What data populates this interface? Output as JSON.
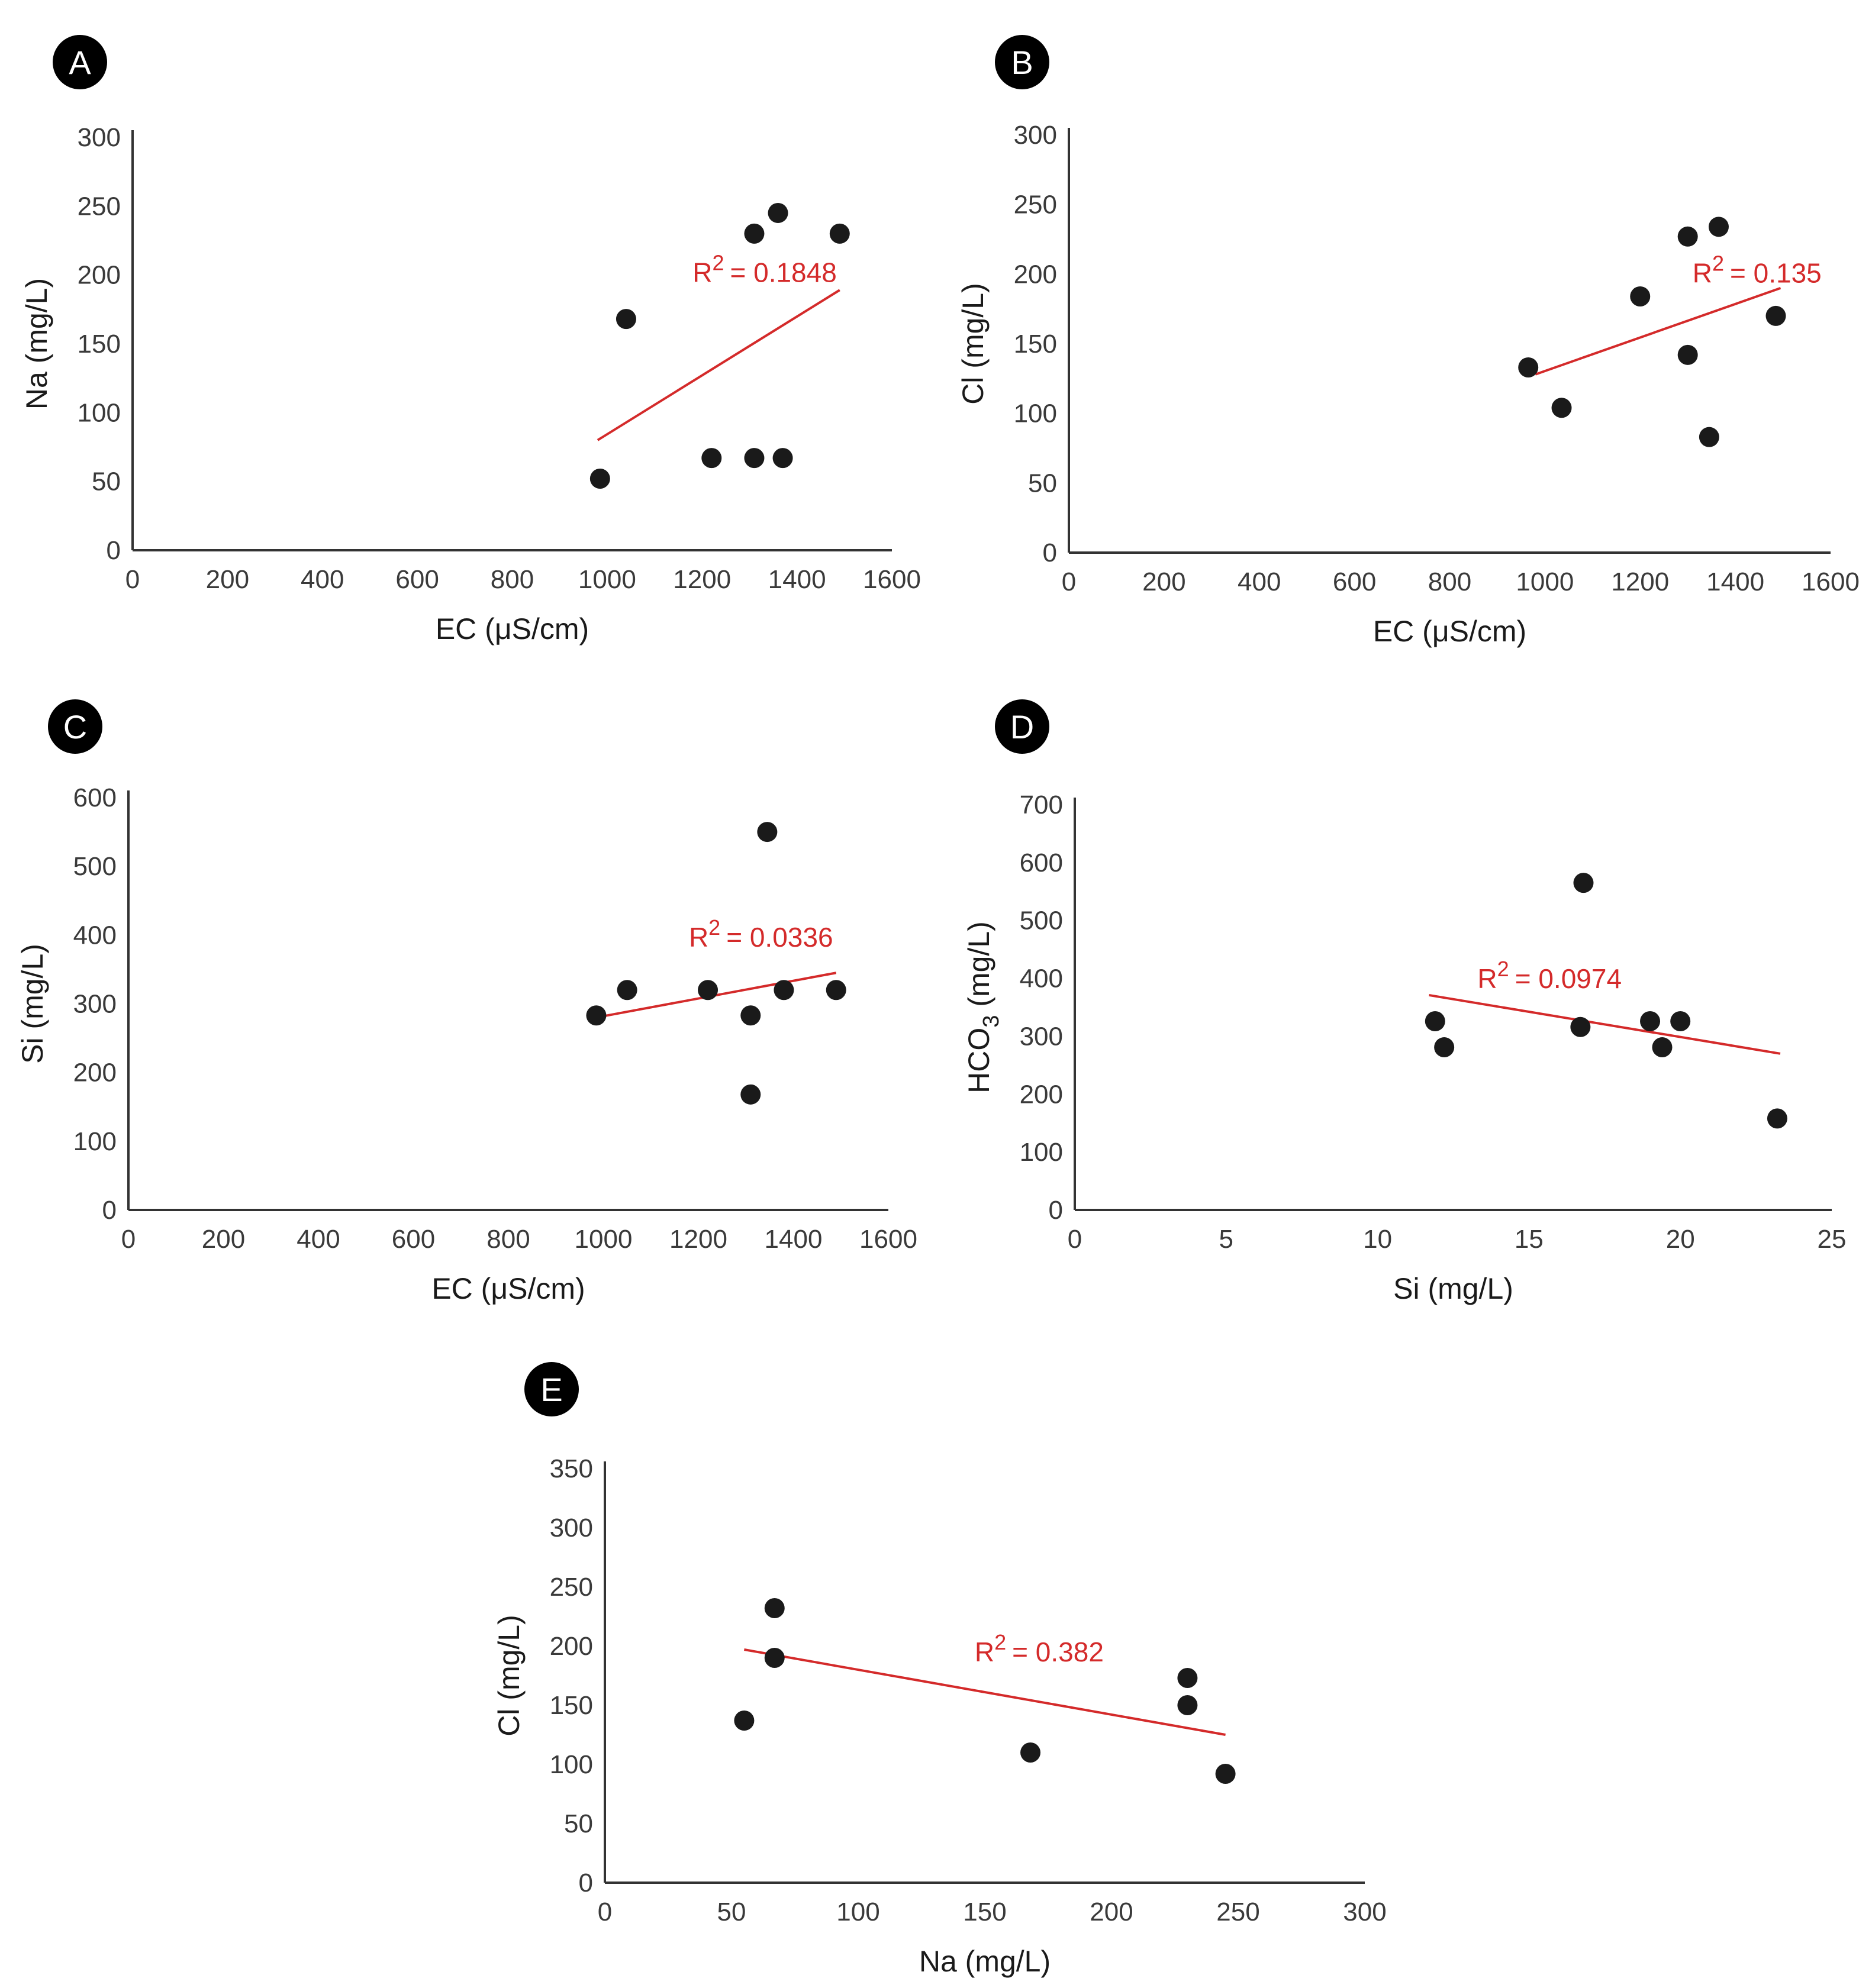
{
  "colors": {
    "point": "#1a1a1a",
    "trend": "#d42a2a",
    "axis": "#333333",
    "badge": "#000000"
  },
  "chart_data": [
    {
      "panel": "A",
      "type": "scatter",
      "xlabel": "EC (μS/cm)",
      "ylabel": "Na (mg/L)",
      "xlim": [
        0,
        1600
      ],
      "ylim": [
        0,
        300
      ],
      "xticks": [
        0,
        200,
        400,
        600,
        800,
        1000,
        1200,
        1400,
        1600
      ],
      "yticks": [
        0,
        50,
        100,
        150,
        200,
        250,
        300
      ],
      "points": [
        [
          985,
          52
        ],
        [
          1040,
          168
        ],
        [
          1220,
          67
        ],
        [
          1310,
          67
        ],
        [
          1370,
          67
        ],
        [
          1310,
          230
        ],
        [
          1360,
          245
        ],
        [
          1490,
          230
        ]
      ],
      "trend": [
        [
          980,
          80
        ],
        [
          1490,
          189
        ]
      ],
      "r2_label": "R",
      "r2_sup": "2",
      "r2_value": "= 0.1848",
      "r2_at": [
        1180,
        195
      ]
    },
    {
      "panel": "B",
      "type": "scatter",
      "xlabel": "EC (μS/cm)",
      "ylabel": "Cl (mg/L)",
      "xlim": [
        0,
        1600
      ],
      "ylim": [
        0,
        300
      ],
      "xticks": [
        0,
        200,
        400,
        600,
        800,
        1000,
        1200,
        1400,
        1600
      ],
      "yticks": [
        0,
        50,
        100,
        150,
        200,
        250,
        300
      ],
      "points": [
        [
          965,
          133
        ],
        [
          1035,
          104
        ],
        [
          1200,
          184
        ],
        [
          1300,
          227
        ],
        [
          1300,
          142
        ],
        [
          1345,
          83
        ],
        [
          1365,
          234
        ],
        [
          1485,
          170
        ]
      ],
      "trend": [
        [
          980,
          128
        ],
        [
          1495,
          190
        ]
      ],
      "r2_label": "R",
      "r2_sup": "2",
      "r2_value": "= 0.135",
      "r2_at": [
        1310,
        194
      ]
    },
    {
      "panel": "C",
      "type": "scatter",
      "xlabel": "EC (μS/cm)",
      "ylabel": "Si (mg/L)",
      "xlim": [
        0,
        1600
      ],
      "ylim": [
        0,
        600
      ],
      "xticks": [
        0,
        200,
        400,
        600,
        800,
        1000,
        1200,
        1400,
        1600
      ],
      "yticks": [
        0,
        100,
        200,
        300,
        400,
        500,
        600
      ],
      "points": [
        [
          985,
          283
        ],
        [
          1050,
          320
        ],
        [
          1220,
          320
        ],
        [
          1310,
          283
        ],
        [
          1310,
          168
        ],
        [
          1345,
          550
        ],
        [
          1380,
          320
        ],
        [
          1490,
          320
        ]
      ],
      "trend": [
        [
          985,
          280
        ],
        [
          1490,
          345
        ]
      ],
      "r2_label": "R",
      "r2_sup": "2",
      "r2_value": "= 0.0336",
      "r2_at": [
        1180,
        383
      ]
    },
    {
      "panel": "D",
      "type": "scatter",
      "xlabel": "Si (mg/L)",
      "ylabel": "HCO",
      "ylabel_sub": "3",
      "ylabel_end": " (mg/L)",
      "xlim": [
        0,
        25
      ],
      "ylim": [
        0,
        700
      ],
      "xticks": [
        0,
        5,
        10,
        15,
        20,
        25
      ],
      "yticks": [
        0,
        100,
        200,
        300,
        400,
        500,
        600,
        700
      ],
      "points": [
        [
          11.9,
          326
        ],
        [
          12.2,
          281
        ],
        [
          16.7,
          316
        ],
        [
          16.8,
          565
        ],
        [
          19,
          326
        ],
        [
          19.4,
          281
        ],
        [
          20,
          326
        ],
        [
          23.2,
          158
        ]
      ],
      "trend": [
        [
          11.7,
          371
        ],
        [
          23.3,
          270
        ]
      ],
      "r2_label": "R",
      "r2_sup": "2",
      "r2_value": "= 0.0974",
      "r2_at": [
        13.3,
        383
      ]
    },
    {
      "panel": "E",
      "type": "scatter",
      "xlabel": "Na (mg/L)",
      "ylabel": "Cl (mg/L)",
      "xlim": [
        0,
        300
      ],
      "ylim": [
        0,
        350
      ],
      "xticks": [
        0,
        50,
        100,
        150,
        200,
        250,
        300
      ],
      "yticks": [
        0,
        50,
        100,
        150,
        200,
        250,
        300,
        350
      ],
      "points": [
        [
          55,
          137
        ],
        [
          67,
          232
        ],
        [
          67,
          190
        ],
        [
          168,
          110
        ],
        [
          230,
          173
        ],
        [
          230,
          150
        ],
        [
          245,
          92
        ]
      ],
      "trend": [
        [
          55,
          197
        ],
        [
          245,
          125
        ]
      ],
      "r2_label": "R",
      "r2_sup": "2",
      "r2_value": "= 0.382",
      "r2_at": [
        146,
        187
      ]
    }
  ]
}
